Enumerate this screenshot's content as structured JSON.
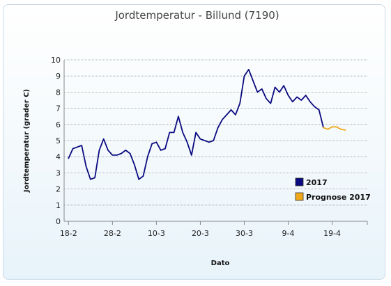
{
  "chart_data": {
    "type": "line",
    "title": "Jordtemperatur - Billund (7190)",
    "xlabel": "Dato",
    "ylabel": "Jordtemperatur (grader C)",
    "ylim": [
      0,
      10
    ],
    "yticks": [
      "0",
      "1",
      "2",
      "3",
      "4",
      "5",
      "6",
      "7",
      "8",
      "9",
      "10"
    ],
    "xticks": [
      {
        "day": 0,
        "label": "18-2"
      },
      {
        "day": 10,
        "label": "28-2"
      },
      {
        "day": 20,
        "label": "10-3"
      },
      {
        "day": 30,
        "label": "20-3"
      },
      {
        "day": 40,
        "label": "30-3"
      },
      {
        "day": 50,
        "label": "9-4"
      },
      {
        "day": 60,
        "label": "19-4"
      }
    ],
    "xlim_days": [
      -1,
      68
    ],
    "grid": true,
    "legend_position": "bottom-right",
    "series": [
      {
        "name": "2017",
        "color": "#0a0a80",
        "points": [
          [
            0,
            3.9
          ],
          [
            1,
            4.5
          ],
          [
            2,
            4.6
          ],
          [
            3,
            4.7
          ],
          [
            4,
            3.4
          ],
          [
            5,
            2.6
          ],
          [
            6,
            2.7
          ],
          [
            7,
            4.4
          ],
          [
            8,
            5.1
          ],
          [
            9,
            4.4
          ],
          [
            10,
            4.1
          ],
          [
            11,
            4.1
          ],
          [
            12,
            4.2
          ],
          [
            13,
            4.4
          ],
          [
            14,
            4.2
          ],
          [
            15,
            3.5
          ],
          [
            16,
            2.6
          ],
          [
            17,
            2.8
          ],
          [
            18,
            4.0
          ],
          [
            19,
            4.8
          ],
          [
            20,
            4.9
          ],
          [
            21,
            4.4
          ],
          [
            22,
            4.5
          ],
          [
            23,
            5.5
          ],
          [
            24,
            5.5
          ],
          [
            25,
            6.5
          ],
          [
            26,
            5.5
          ],
          [
            27,
            4.9
          ],
          [
            28,
            4.1
          ],
          [
            29,
            5.5
          ],
          [
            30,
            5.1
          ],
          [
            31,
            5.0
          ],
          [
            32,
            4.9
          ],
          [
            33,
            5.0
          ],
          [
            34,
            5.8
          ],
          [
            35,
            6.3
          ],
          [
            36,
            6.6
          ],
          [
            37,
            6.9
          ],
          [
            38,
            6.6
          ],
          [
            39,
            7.3
          ],
          [
            40,
            9.0
          ],
          [
            41,
            9.4
          ],
          [
            42,
            8.7
          ],
          [
            43,
            8.0
          ],
          [
            44,
            8.2
          ],
          [
            45,
            7.6
          ],
          [
            46,
            7.3
          ],
          [
            47,
            8.3
          ],
          [
            48,
            8.0
          ],
          [
            49,
            8.4
          ],
          [
            50,
            7.8
          ],
          [
            51,
            7.4
          ],
          [
            52,
            7.7
          ],
          [
            53,
            7.5
          ],
          [
            54,
            7.8
          ],
          [
            55,
            7.4
          ],
          [
            56,
            7.1
          ],
          [
            57,
            6.9
          ],
          [
            58,
            5.8
          ]
        ]
      },
      {
        "name": "Prognose 2017",
        "color": "#f0a818",
        "points": [
          [
            58,
            5.8
          ],
          [
            59,
            5.7
          ],
          [
            60,
            5.85
          ],
          [
            61,
            5.85
          ],
          [
            62,
            5.7
          ],
          [
            63,
            5.65
          ]
        ]
      }
    ]
  }
}
